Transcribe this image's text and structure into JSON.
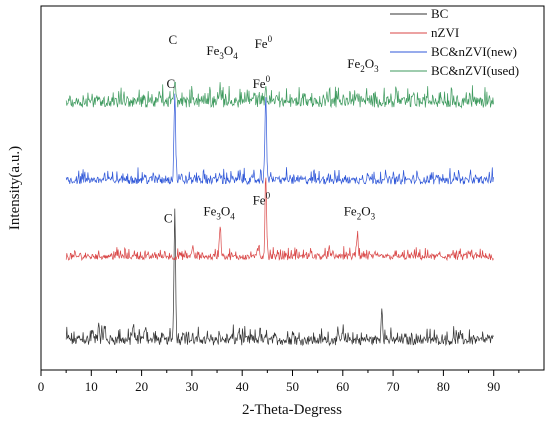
{
  "chart_data": {
    "type": "line",
    "xlabel": "2-Theta-Degress",
    "ylabel": "Intensity(a.u.)",
    "xlim": [
      0,
      100
    ],
    "xticks": [
      0,
      10,
      20,
      30,
      40,
      50,
      60,
      70,
      80,
      90
    ],
    "grid": false,
    "legend_position": "top-right",
    "series": [
      {
        "name": "BC",
        "color": "#333333",
        "baseline": 0.08,
        "noise": 0.012,
        "peaks": [
          {
            "x": 10.2,
            "h": 0.03
          },
          {
            "x": 11.5,
            "h": 0.04
          },
          {
            "x": 12.6,
            "h": 0.035
          },
          {
            "x": 18.2,
            "h": 0.022
          },
          {
            "x": 20.8,
            "h": 0.045
          },
          {
            "x": 26.6,
            "h": 0.36
          },
          {
            "x": 28.3,
            "h": 0.03
          },
          {
            "x": 39.3,
            "h": 0.03
          },
          {
            "x": 43.5,
            "h": 0.025
          },
          {
            "x": 50.1,
            "h": 0.02
          },
          {
            "x": 60.0,
            "h": 0.018
          },
          {
            "x": 67.8,
            "h": 0.08
          }
        ]
      },
      {
        "name": "nZVI",
        "color": "#d94646",
        "baseline": 0.31,
        "noise": 0.008,
        "peaks": [
          {
            "x": 30.1,
            "h": 0.03
          },
          {
            "x": 35.6,
            "h": 0.09
          },
          {
            "x": 43.2,
            "h": 0.02
          },
          {
            "x": 44.7,
            "h": 0.22
          },
          {
            "x": 53.7,
            "h": 0.015
          },
          {
            "x": 57.3,
            "h": 0.02
          },
          {
            "x": 62.9,
            "h": 0.06
          }
        ]
      },
      {
        "name": "BC&nZVI(new)",
        "color": "#2f57d8",
        "baseline": 0.52,
        "noise": 0.01,
        "peaks": [
          {
            "x": 26.6,
            "h": 0.24
          },
          {
            "x": 35.5,
            "h": 0.015
          },
          {
            "x": 44.7,
            "h": 0.24
          },
          {
            "x": 65.0,
            "h": 0.018
          },
          {
            "x": 82.3,
            "h": 0.02
          }
        ]
      },
      {
        "name": "BC&nZVI(used)",
        "color": "#3e9a5e",
        "baseline": 0.735,
        "noise": 0.014,
        "peaks": [
          {
            "x": 26.6,
            "h": 0.06
          },
          {
            "x": 30.2,
            "h": 0.02
          },
          {
            "x": 35.5,
            "h": 0.03
          },
          {
            "x": 44.7,
            "h": 0.04
          },
          {
            "x": 47.0,
            "h": 0.02
          },
          {
            "x": 57.2,
            "h": 0.018
          },
          {
            "x": 62.8,
            "h": 0.02
          },
          {
            "x": 74.0,
            "h": 0.018
          }
        ]
      }
    ],
    "annotations": [
      {
        "base": "C",
        "sub": "",
        "sup": "",
        "x": 26.2,
        "y": 0.895
      },
      {
        "base": "Fe",
        "sub": "3",
        "sup": "",
        "base2": "O",
        "sub2": "4",
        "x": 36.0,
        "y": 0.865
      },
      {
        "base": "Fe",
        "sub": "",
        "sup": "0",
        "x": 44.2,
        "y": 0.885
      },
      {
        "base": "Fe",
        "sub": "2",
        "sup": "",
        "base2": "O",
        "sub2": "3",
        "x": 64.0,
        "y": 0.83
      },
      {
        "base": "C",
        "sub": "",
        "sup": "",
        "x": 25.8,
        "y": 0.775
      },
      {
        "base": "Fe",
        "sub": "",
        "sup": "0",
        "x": 43.8,
        "y": 0.775
      },
      {
        "base": "Fe",
        "sub": "3",
        "sup": "",
        "base2": "O",
        "sub2": "4",
        "x": 35.4,
        "y": 0.425
      },
      {
        "base": "Fe",
        "sub": "",
        "sup": "0",
        "x": 43.8,
        "y": 0.455
      },
      {
        "base": "Fe",
        "sub": "2",
        "sup": "",
        "base2": "O",
        "sub2": "3",
        "x": 63.3,
        "y": 0.425
      },
      {
        "base": "C",
        "sub": "",
        "sup": "",
        "x": 25.3,
        "y": 0.405
      }
    ]
  }
}
